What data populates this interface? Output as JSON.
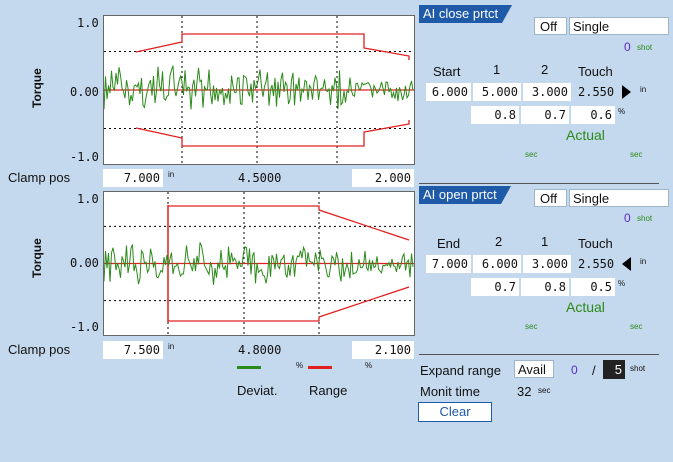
{
  "close_chart": {
    "y_label": "Torque",
    "y_top": "1.0",
    "y_mid": "0.00",
    "y_bot": "-1.0",
    "clamp_label": "Clamp pos",
    "clamp_left": "7.000",
    "clamp_unit": "in",
    "clamp_mid": "4.5000",
    "clamp_right": "2.000"
  },
  "open_chart": {
    "y_label": "Torque",
    "y_top": "1.0",
    "y_mid": "0.00",
    "y_bot": "-1.0",
    "clamp_label": "Clamp pos",
    "clamp_left": "7.500",
    "clamp_unit": "in",
    "clamp_mid": "4.8000",
    "clamp_right": "2.100"
  },
  "close_panel": {
    "tab": "AI close prtct",
    "state": "Off",
    "mode": "Single",
    "count": "0",
    "count_unit": "shot",
    "headers": [
      "Start",
      "1",
      "2",
      "Touch"
    ],
    "pos_values": [
      "6.000",
      "5.000",
      "3.000"
    ],
    "touch_value": "2.550",
    "pos_unit": "in",
    "pct_values": [
      "0.8",
      "0.7",
      "0.6"
    ],
    "pct_unit": "%",
    "actual_label": "Actual",
    "sec_left": "sec",
    "sec_right": "sec"
  },
  "open_panel": {
    "tab": "AI open prtct",
    "state": "Off",
    "mode": "Single",
    "count": "0",
    "count_unit": "shot",
    "headers": [
      "End",
      "2",
      "1",
      "Touch"
    ],
    "pos_values": [
      "7.000",
      "6.000",
      "3.000"
    ],
    "touch_value": "2.550",
    "pos_unit": "in",
    "pct_values": [
      "0.7",
      "0.8",
      "0.5"
    ],
    "pct_unit": "%",
    "actual_label": "Actual",
    "sec_left": "sec",
    "sec_right": "sec"
  },
  "legend": {
    "deviat_label": "Deviat.",
    "range_label": "Range",
    "unit1": "%",
    "unit2": "%",
    "deviat_color": "#2b8a1a",
    "range_color": "#e02020"
  },
  "bottom": {
    "expand_label": "Expand range",
    "expand_value": "Avail",
    "counter_current": "0",
    "counter_sep": "/",
    "counter_max": "5",
    "counter_unit": "shot",
    "monit_label": "Monit time",
    "monit_value": "32",
    "monit_unit": "sec",
    "clear_label": "Clear"
  }
}
